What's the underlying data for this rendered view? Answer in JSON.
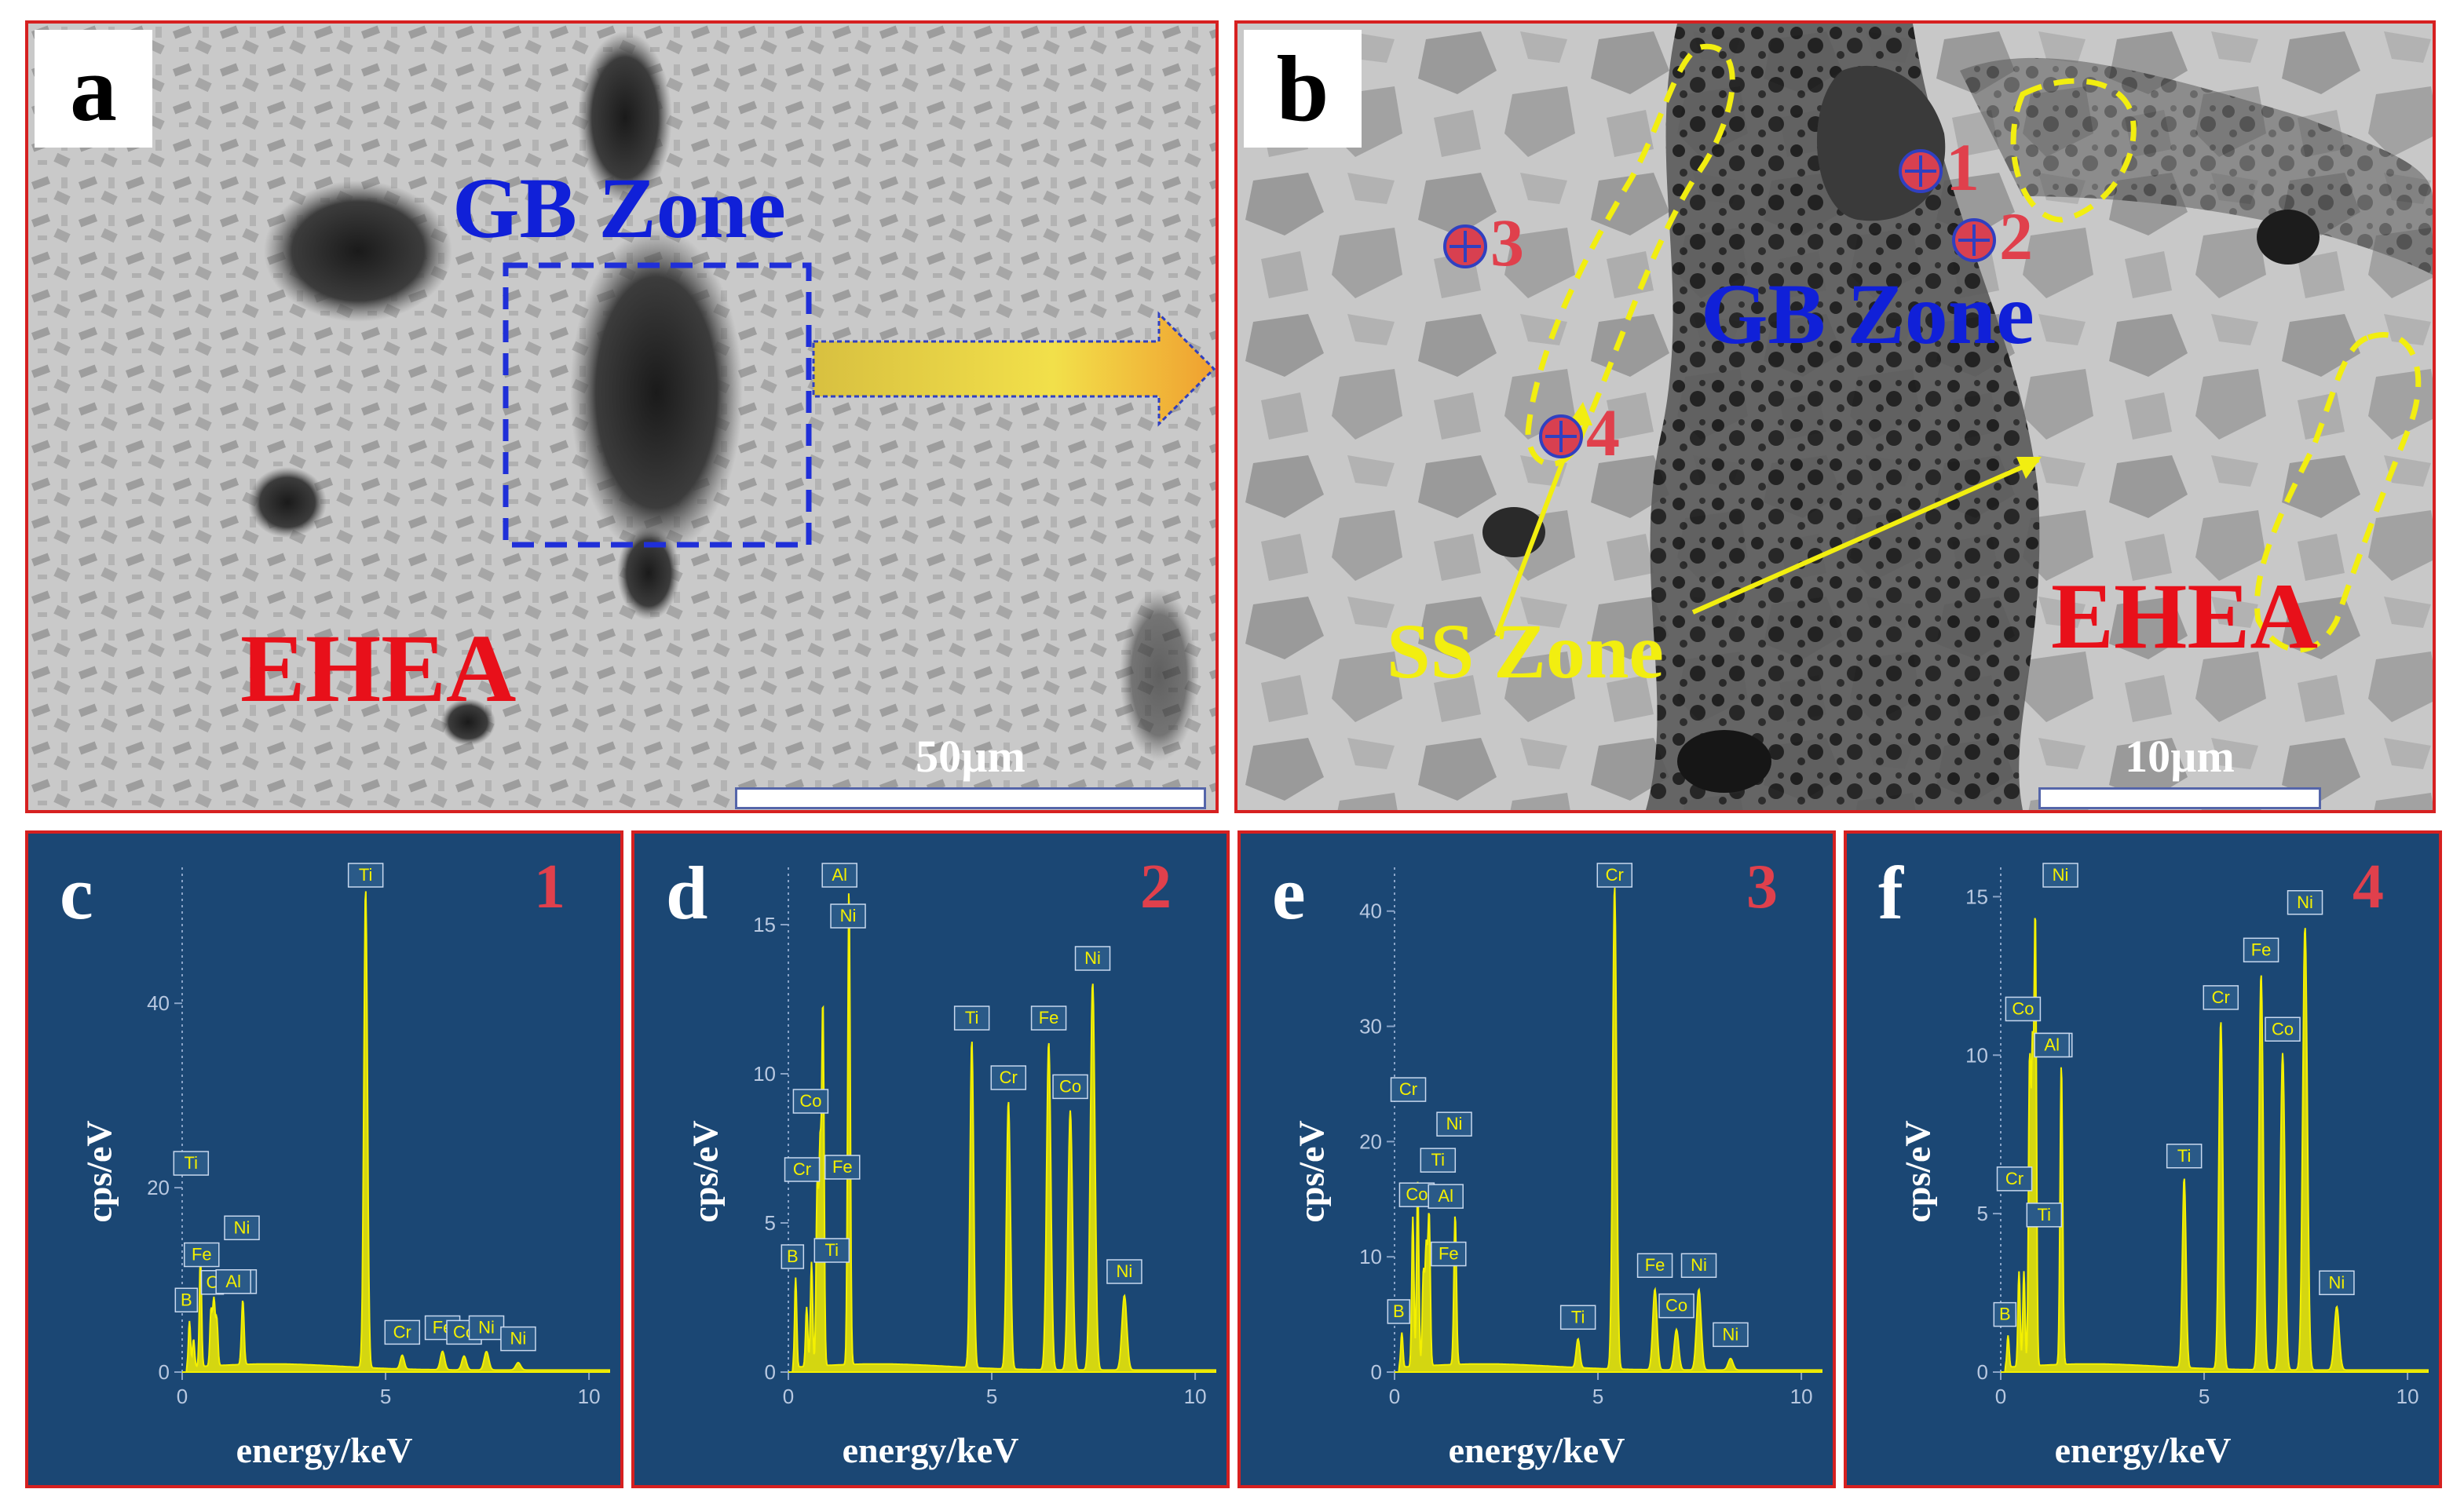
{
  "sem_a": {
    "letter": "a",
    "gb_label": "GB Zone",
    "ehea_label": "EHEA",
    "scale_text": "50µm"
  },
  "sem_b": {
    "letter": "b",
    "gb_label": "GB Zone",
    "ss_label": "SS Zone",
    "ehea_label": "EHEA",
    "scale_text": "10µm",
    "points": [
      "1",
      "2",
      "3",
      "4"
    ]
  },
  "colors": {
    "panel_border": "#d62020",
    "gb_text": "#1020d8",
    "ehea_text": "#e8101a",
    "ss_text": "#f2ee10",
    "spectrum": "#f4f000",
    "eds_bg": "#1b4774",
    "point_label": "#e0404c"
  },
  "chart_data": [
    {
      "type": "line",
      "panel": "c",
      "spot": "1",
      "xlabel": "energy/keV",
      "ylabel": "cps/eV",
      "xlim": [
        0,
        10.5
      ],
      "ylim": [
        0,
        55
      ],
      "xticks": [
        0,
        5,
        10
      ],
      "yticks": [
        0,
        20,
        40
      ],
      "peaks": [
        {
          "label": "B",
          "x": 0.18,
          "y": 5
        },
        {
          "label": "C",
          "x": 0.28,
          "y": 3
        },
        {
          "label": "Ti",
          "x": 0.45,
          "y": 12
        },
        {
          "label": "Co",
          "x": 0.78,
          "y": 7
        },
        {
          "label": "Fe",
          "x": 0.71,
          "y": 6
        },
        {
          "label": "Ni",
          "x": 0.85,
          "y": 5
        },
        {
          "label": "Al",
          "x": 1.49,
          "y": 7
        },
        {
          "label": "Ti",
          "x": 4.51,
          "y": 52
        },
        {
          "label": "Cr",
          "x": 5.41,
          "y": 1.5
        },
        {
          "label": "Fe",
          "x": 6.4,
          "y": 2
        },
        {
          "label": "Co",
          "x": 6.93,
          "y": 1.5
        },
        {
          "label": "Ni",
          "x": 7.48,
          "y": 2
        },
        {
          "label": "Ni",
          "x": 8.26,
          "y": 0.8
        }
      ]
    },
    {
      "type": "line",
      "panel": "d",
      "spot": "2",
      "xlabel": "energy/keV",
      "ylabel": "cps/eV",
      "xlim": [
        0,
        10.5
      ],
      "ylim": [
        0,
        17
      ],
      "xticks": [
        0,
        5,
        10
      ],
      "yticks": [
        0,
        5,
        10,
        15
      ],
      "peaks": [
        {
          "label": "B",
          "x": 0.18,
          "y": 3
        },
        {
          "label": "Ti",
          "x": 0.45,
          "y": 2
        },
        {
          "label": "Cr",
          "x": 0.57,
          "y": 3.5
        },
        {
          "label": "Fe",
          "x": 0.71,
          "y": 6
        },
        {
          "label": "Co",
          "x": 0.78,
          "y": 7
        },
        {
          "label": "Ni",
          "x": 0.85,
          "y": 12
        },
        {
          "label": "Al",
          "x": 1.49,
          "y": 16
        },
        {
          "label": "Ti",
          "x": 4.51,
          "y": 11
        },
        {
          "label": "Cr",
          "x": 5.41,
          "y": 9
        },
        {
          "label": "Fe",
          "x": 6.4,
          "y": 11
        },
        {
          "label": "Co",
          "x": 6.93,
          "y": 8.7
        },
        {
          "label": "Ni",
          "x": 7.48,
          "y": 13
        },
        {
          "label": "Ni",
          "x": 8.26,
          "y": 2.5
        }
      ]
    },
    {
      "type": "line",
      "panel": "e",
      "spot": "3",
      "xlabel": "energy/keV",
      "ylabel": "cps/eV",
      "xlim": [
        0,
        10.5
      ],
      "ylim": [
        0,
        44
      ],
      "xticks": [
        0,
        5,
        10
      ],
      "yticks": [
        0,
        10,
        20,
        30,
        40
      ],
      "peaks": [
        {
          "label": "B",
          "x": 0.18,
          "y": 3
        },
        {
          "label": "Ti",
          "x": 0.45,
          "y": 13
        },
        {
          "label": "Cr",
          "x": 0.57,
          "y": 16
        },
        {
          "label": "Fe",
          "x": 0.71,
          "y": 8
        },
        {
          "label": "Co",
          "x": 0.78,
          "y": 10
        },
        {
          "label": "Ni",
          "x": 0.85,
          "y": 13
        },
        {
          "label": "Al",
          "x": 1.49,
          "y": 13
        },
        {
          "label": "Ti",
          "x": 4.51,
          "y": 2.5
        },
        {
          "label": "Cr",
          "x": 5.41,
          "y": 42
        },
        {
          "label": "Fe",
          "x": 6.4,
          "y": 7
        },
        {
          "label": "Co",
          "x": 6.93,
          "y": 3.5
        },
        {
          "label": "Ni",
          "x": 7.48,
          "y": 7
        },
        {
          "label": "Ni",
          "x": 8.26,
          "y": 1
        }
      ]
    },
    {
      "type": "line",
      "panel": "f",
      "spot": "4",
      "xlabel": "energy/keV",
      "ylabel": "cps/eV",
      "xlim": [
        0,
        10.5
      ],
      "ylim": [
        0,
        16
      ],
      "xticks": [
        0,
        5,
        10
      ],
      "yticks": [
        0,
        5,
        10,
        15
      ],
      "peaks": [
        {
          "label": "B",
          "x": 0.18,
          "y": 1
        },
        {
          "label": "Ti",
          "x": 0.45,
          "y": 3
        },
        {
          "label": "Cr",
          "x": 0.57,
          "y": 3
        },
        {
          "label": "Fe",
          "x": 0.71,
          "y": 9.5
        },
        {
          "label": "Co",
          "x": 0.78,
          "y": 9.5
        },
        {
          "label": "Ni",
          "x": 0.85,
          "y": 14
        },
        {
          "label": "Al",
          "x": 1.49,
          "y": 9.5
        },
        {
          "label": "Ti",
          "x": 4.51,
          "y": 6
        },
        {
          "label": "Cr",
          "x": 5.41,
          "y": 11
        },
        {
          "label": "Fe",
          "x": 6.4,
          "y": 12.5
        },
        {
          "label": "Co",
          "x": 6.93,
          "y": 10
        },
        {
          "label": "Ni",
          "x": 7.48,
          "y": 14
        },
        {
          "label": "Ni",
          "x": 8.26,
          "y": 2
        }
      ]
    }
  ]
}
